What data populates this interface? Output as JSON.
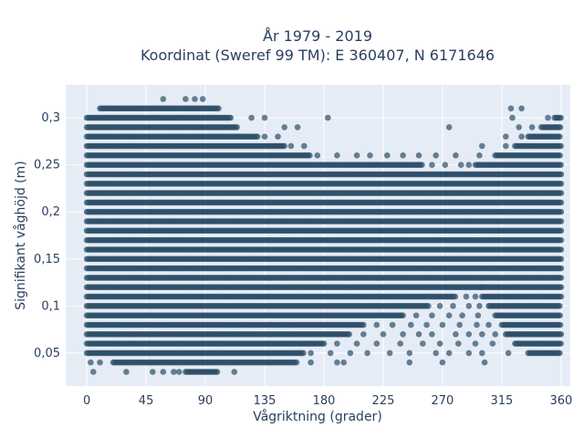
{
  "chart_data": {
    "type": "scatter",
    "title_lines": [
      "År 1979 - 2019",
      "Koordinat (Sweref 99 TM): E 360407, N 6171646"
    ],
    "xlabel": "Vågriktning (grader)",
    "ylabel": "Signifikant våghöjd (m)",
    "xlim": [
      -16,
      367
    ],
    "ylim": [
      0.015,
      0.335
    ],
    "x_ticks": [
      0,
      45,
      90,
      135,
      180,
      225,
      270,
      315,
      360
    ],
    "x_tick_labels": [
      "0",
      "45",
      "90",
      "135",
      "180",
      "225",
      "270",
      "315",
      "360"
    ],
    "y_ticks": [
      0.05,
      0.1,
      0.15,
      0.2,
      0.25,
      0.3
    ],
    "y_tick_labels": [
      "0,05",
      "0,1",
      "0,15",
      "0,2",
      "0,25",
      "0,3"
    ],
    "grid": true,
    "marker_color": "#2c4f68",
    "marker_opacity": 0.7,
    "background_color": "#e5ecf6",
    "band_levels": [
      0.03,
      0.04,
      0.05,
      0.06,
      0.07,
      0.08,
      0.09,
      0.1,
      0.11,
      0.12,
      0.13,
      0.14,
      0.15,
      0.16,
      0.17,
      0.18,
      0.19,
      0.2,
      0.21,
      0.22,
      0.23,
      0.24,
      0.25,
      0.26,
      0.27,
      0.28,
      0.29,
      0.3,
      0.31,
      0.32
    ],
    "dense_ranges": [
      {
        "y": 0.03,
        "x": [
          75,
          100
        ]
      },
      {
        "y": 0.04,
        "x": [
          20,
          160
        ]
      },
      {
        "y": 0.05,
        "x": [
          0,
          165
        ]
      },
      {
        "y": 0.06,
        "x": [
          0,
          180
        ]
      },
      {
        "y": 0.07,
        "x": [
          0,
          200
        ]
      },
      {
        "y": 0.08,
        "x": [
          0,
          210
        ]
      },
      {
        "y": 0.09,
        "x": [
          0,
          240
        ]
      },
      {
        "y": 0.1,
        "x": [
          0,
          260
        ]
      },
      {
        "y": 0.11,
        "x": [
          0,
          280
        ]
      },
      {
        "y": 0.12,
        "x": [
          0,
          300
        ]
      },
      {
        "y": 0.13,
        "x": [
          0,
          360
        ]
      },
      {
        "y": 0.14,
        "x": [
          0,
          360
        ]
      },
      {
        "y": 0.15,
        "x": [
          0,
          360
        ]
      },
      {
        "y": 0.16,
        "x": [
          0,
          360
        ]
      },
      {
        "y": 0.17,
        "x": [
          0,
          360
        ]
      },
      {
        "y": 0.18,
        "x": [
          0,
          360
        ]
      },
      {
        "y": 0.19,
        "x": [
          0,
          360
        ]
      },
      {
        "y": 0.2,
        "x": [
          0,
          360
        ]
      },
      {
        "y": 0.21,
        "x": [
          0,
          360
        ]
      },
      {
        "y": 0.22,
        "x": [
          0,
          360
        ]
      },
      {
        "y": 0.23,
        "x": [
          0,
          360
        ]
      },
      {
        "y": 0.24,
        "x": [
          0,
          360
        ]
      },
      {
        "y": 0.25,
        "x": [
          0,
          255
        ]
      },
      {
        "y": 0.26,
        "x": [
          0,
          170
        ]
      },
      {
        "y": 0.27,
        "x": [
          0,
          150
        ]
      },
      {
        "y": 0.28,
        "x": [
          0,
          130
        ]
      },
      {
        "y": 0.29,
        "x": [
          0,
          115
        ]
      },
      {
        "y": 0.3,
        "x": [
          0,
          110
        ]
      },
      {
        "y": 0.31,
        "x": [
          10,
          100
        ]
      }
    ],
    "dense_ranges_right": [
      {
        "y": 0.05,
        "x": [
          335,
          360
        ]
      },
      {
        "y": 0.06,
        "x": [
          325,
          360
        ]
      },
      {
        "y": 0.07,
        "x": [
          318,
          360
        ]
      },
      {
        "y": 0.08,
        "x": [
          315,
          360
        ]
      },
      {
        "y": 0.09,
        "x": [
          310,
          360
        ]
      },
      {
        "y": 0.1,
        "x": [
          305,
          360
        ]
      },
      {
        "y": 0.11,
        "x": [
          300,
          360
        ]
      },
      {
        "y": 0.12,
        "x": [
          300,
          360
        ]
      },
      {
        "y": 0.25,
        "x": [
          295,
          360
        ]
      },
      {
        "y": 0.26,
        "x": [
          310,
          360
        ]
      },
      {
        "y": 0.27,
        "x": [
          325,
          360
        ]
      },
      {
        "y": 0.28,
        "x": [
          335,
          360
        ]
      },
      {
        "y": 0.29,
        "x": [
          345,
          360
        ]
      },
      {
        "y": 0.3,
        "x": [
          355,
          360
        ]
      }
    ],
    "scattered_points": [
      [
        5,
        0.03
      ],
      [
        30,
        0.03
      ],
      [
        50,
        0.03
      ],
      [
        58,
        0.03
      ],
      [
        66,
        0.03
      ],
      [
        70,
        0.03
      ],
      [
        112,
        0.03
      ],
      [
        3,
        0.04
      ],
      [
        10,
        0.04
      ],
      [
        170,
        0.04
      ],
      [
        190,
        0.04
      ],
      [
        195,
        0.04
      ],
      [
        170,
        0.05
      ],
      [
        185,
        0.05
      ],
      [
        200,
        0.05
      ],
      [
        213,
        0.05
      ],
      [
        230,
        0.05
      ],
      [
        245,
        0.05
      ],
      [
        265,
        0.05
      ],
      [
        275,
        0.05
      ],
      [
        290,
        0.05
      ],
      [
        300,
        0.05
      ],
      [
        320,
        0.05
      ],
      [
        245,
        0.04
      ],
      [
        270,
        0.04
      ],
      [
        302,
        0.04
      ],
      [
        190,
        0.06
      ],
      [
        205,
        0.06
      ],
      [
        220,
        0.06
      ],
      [
        238,
        0.06
      ],
      [
        255,
        0.06
      ],
      [
        268,
        0.06
      ],
      [
        282,
        0.06
      ],
      [
        295,
        0.06
      ],
      [
        308,
        0.06
      ],
      [
        210,
        0.07
      ],
      [
        225,
        0.07
      ],
      [
        240,
        0.07
      ],
      [
        252,
        0.07
      ],
      [
        262,
        0.07
      ],
      [
        280,
        0.07
      ],
      [
        290,
        0.07
      ],
      [
        300,
        0.07
      ],
      [
        310,
        0.07
      ],
      [
        220,
        0.08
      ],
      [
        232,
        0.08
      ],
      [
        246,
        0.08
      ],
      [
        258,
        0.08
      ],
      [
        270,
        0.08
      ],
      [
        283,
        0.08
      ],
      [
        296,
        0.08
      ],
      [
        305,
        0.08
      ],
      [
        250,
        0.09
      ],
      [
        262,
        0.09
      ],
      [
        275,
        0.09
      ],
      [
        285,
        0.09
      ],
      [
        297,
        0.09
      ],
      [
        268,
        0.1
      ],
      [
        278,
        0.1
      ],
      [
        290,
        0.1
      ],
      [
        298,
        0.1
      ],
      [
        288,
        0.11
      ],
      [
        295,
        0.11
      ],
      [
        262,
        0.25
      ],
      [
        272,
        0.25
      ],
      [
        284,
        0.25
      ],
      [
        290,
        0.25
      ],
      [
        175,
        0.26
      ],
      [
        190,
        0.26
      ],
      [
        205,
        0.26
      ],
      [
        215,
        0.26
      ],
      [
        228,
        0.26
      ],
      [
        240,
        0.26
      ],
      [
        252,
        0.26
      ],
      [
        265,
        0.26
      ],
      [
        280,
        0.26
      ],
      [
        298,
        0.26
      ],
      [
        155,
        0.27
      ],
      [
        165,
        0.27
      ],
      [
        300,
        0.27
      ],
      [
        318,
        0.27
      ],
      [
        135,
        0.28
      ],
      [
        145,
        0.28
      ],
      [
        318,
        0.28
      ],
      [
        330,
        0.28
      ],
      [
        150,
        0.29
      ],
      [
        160,
        0.29
      ],
      [
        275,
        0.29
      ],
      [
        328,
        0.29
      ],
      [
        338,
        0.29
      ],
      [
        125,
        0.3
      ],
      [
        135,
        0.3
      ],
      [
        183,
        0.3
      ],
      [
        323,
        0.3
      ],
      [
        350,
        0.3
      ],
      [
        322,
        0.31
      ],
      [
        330,
        0.31
      ],
      [
        58,
        0.32
      ],
      [
        75,
        0.32
      ],
      [
        82,
        0.32
      ],
      [
        88,
        0.32
      ]
    ]
  }
}
